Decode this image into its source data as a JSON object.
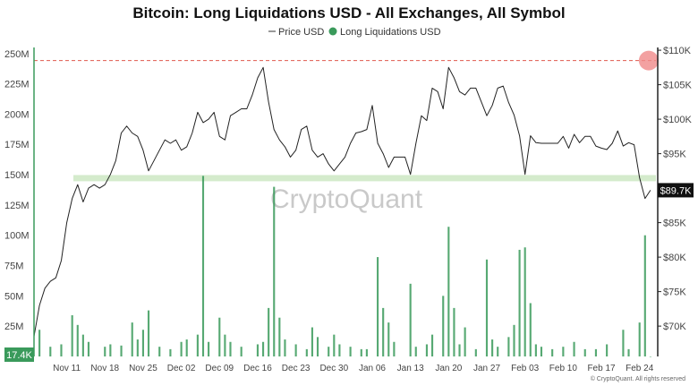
{
  "chart_data": {
    "type": "bar+line",
    "title": "Bitcoin: Long Liquidations USD - All Exchanges, All Symbol",
    "legend": [
      {
        "name": "Price USD",
        "marker": "line",
        "color": "#555555"
      },
      {
        "name": "Long Liquidations USD",
        "marker": "dot",
        "color": "#3a9a5b"
      }
    ],
    "left_axis": {
      "ticks": [
        {
          "value": 25000000,
          "label": "25M"
        },
        {
          "value": 50000000,
          "label": "50M"
        },
        {
          "value": 75000000,
          "label": "75M"
        },
        {
          "value": 100000000,
          "label": "100M"
        },
        {
          "value": 125000000,
          "label": "125M"
        },
        {
          "value": 150000000,
          "label": "150M"
        },
        {
          "value": 175000000,
          "label": "175M"
        },
        {
          "value": 200000000,
          "label": "200M"
        },
        {
          "value": 225000000,
          "label": "225M"
        },
        {
          "value": 250000000,
          "label": "250M"
        }
      ],
      "range": [
        0,
        255000000
      ],
      "current_value_label": "17.4K"
    },
    "right_axis": {
      "ticks": [
        {
          "value": 70000,
          "label": "$70K"
        },
        {
          "value": 75000,
          "label": "$75K"
        },
        {
          "value": 80000,
          "label": "$80K"
        },
        {
          "value": 85000,
          "label": "$85K"
        },
        {
          "value": 95000,
          "label": "$95K"
        },
        {
          "value": 100000,
          "label": "$100K"
        },
        {
          "value": 105000,
          "label": "$105K"
        },
        {
          "value": 110000,
          "label": "$110K"
        }
      ],
      "range": [
        65600,
        110400
      ],
      "current_value_label": "$89.7K"
    },
    "x_axis": {
      "start": "2024-11-05",
      "end": "2025-02-27",
      "ticks": [
        {
          "date": "2024-11-11",
          "label": "Nov 11"
        },
        {
          "date": "2024-11-18",
          "label": "Nov 18"
        },
        {
          "date": "2024-11-25",
          "label": "Nov 25"
        },
        {
          "date": "2024-12-02",
          "label": "Dec 02"
        },
        {
          "date": "2024-12-09",
          "label": "Dec 09"
        },
        {
          "date": "2024-12-16",
          "label": "Dec 16"
        },
        {
          "date": "2024-12-23",
          "label": "Dec 23"
        },
        {
          "date": "2024-12-30",
          "label": "Dec 30"
        },
        {
          "date": "2025-01-06",
          "label": "Jan 06"
        },
        {
          "date": "2025-01-13",
          "label": "Jan 13"
        },
        {
          "date": "2025-01-20",
          "label": "Jan 20"
        },
        {
          "date": "2025-01-27",
          "label": "Jan 27"
        },
        {
          "date": "2025-02-03",
          "label": "Feb 03"
        },
        {
          "date": "2025-02-10",
          "label": "Feb 10"
        },
        {
          "date": "2025-02-17",
          "label": "Feb 17"
        },
        {
          "date": "2025-02-24",
          "label": "Feb 24"
        }
      ]
    },
    "price_usd": [
      [
        "2024-11-05",
        68500
      ],
      [
        "2024-11-06",
        73000
      ],
      [
        "2024-11-07",
        75500
      ],
      [
        "2024-11-08",
        76500
      ],
      [
        "2024-11-09",
        77000
      ],
      [
        "2024-11-10",
        79500
      ],
      [
        "2024-11-11",
        85000
      ],
      [
        "2024-11-12",
        88500
      ],
      [
        "2024-11-13",
        90500
      ],
      [
        "2024-11-14",
        88000
      ],
      [
        "2024-11-15",
        90000
      ],
      [
        "2024-11-16",
        90500
      ],
      [
        "2024-11-17",
        90000
      ],
      [
        "2024-11-18",
        90500
      ],
      [
        "2024-11-19",
        92000
      ],
      [
        "2024-11-20",
        94000
      ],
      [
        "2024-11-21",
        98000
      ],
      [
        "2024-11-22",
        99000
      ],
      [
        "2024-11-23",
        98000
      ],
      [
        "2024-11-24",
        97500
      ],
      [
        "2024-11-25",
        95500
      ],
      [
        "2024-11-26",
        92500
      ],
      [
        "2024-11-27",
        94000
      ],
      [
        "2024-11-28",
        95500
      ],
      [
        "2024-11-29",
        97000
      ],
      [
        "2024-11-30",
        96500
      ],
      [
        "2024-12-01",
        97000
      ],
      [
        "2024-12-02",
        95500
      ],
      [
        "2024-12-03",
        96000
      ],
      [
        "2024-12-04",
        98000
      ],
      [
        "2024-12-05",
        101000
      ],
      [
        "2024-12-06",
        99500
      ],
      [
        "2024-12-07",
        100000
      ],
      [
        "2024-12-08",
        101000
      ],
      [
        "2024-12-09",
        97500
      ],
      [
        "2024-12-10",
        97000
      ],
      [
        "2024-12-11",
        100500
      ],
      [
        "2024-12-12",
        101000
      ],
      [
        "2024-12-13",
        101500
      ],
      [
        "2024-12-14",
        101500
      ],
      [
        "2024-12-15",
        103500
      ],
      [
        "2024-12-16",
        106000
      ],
      [
        "2024-12-17",
        107500
      ],
      [
        "2024-12-18",
        102500
      ],
      [
        "2024-12-19",
        98500
      ],
      [
        "2024-12-20",
        97000
      ],
      [
        "2024-12-21",
        96000
      ],
      [
        "2024-12-22",
        94500
      ],
      [
        "2024-12-23",
        95500
      ],
      [
        "2024-12-24",
        98500
      ],
      [
        "2024-12-25",
        99000
      ],
      [
        "2024-12-26",
        95500
      ],
      [
        "2024-12-27",
        94500
      ],
      [
        "2024-12-28",
        95000
      ],
      [
        "2024-12-29",
        93500
      ],
      [
        "2024-12-30",
        92500
      ],
      [
        "2024-12-31",
        93500
      ],
      [
        "2025-01-01",
        94500
      ],
      [
        "2025-01-02",
        96500
      ],
      [
        "2025-01-03",
        98000
      ],
      [
        "2025-01-04",
        98200
      ],
      [
        "2025-01-05",
        98500
      ],
      [
        "2025-01-06",
        102000
      ],
      [
        "2025-01-07",
        96500
      ],
      [
        "2025-01-08",
        95000
      ],
      [
        "2025-01-09",
        93000
      ],
      [
        "2025-01-10",
        94500
      ],
      [
        "2025-01-11",
        94500
      ],
      [
        "2025-01-12",
        94500
      ],
      [
        "2025-01-13",
        92000
      ],
      [
        "2025-01-14",
        96500
      ],
      [
        "2025-01-15",
        100500
      ],
      [
        "2025-01-16",
        99800
      ],
      [
        "2025-01-17",
        104500
      ],
      [
        "2025-01-18",
        104000
      ],
      [
        "2025-01-19",
        101500
      ],
      [
        "2025-01-20",
        107500
      ],
      [
        "2025-01-21",
        106000
      ],
      [
        "2025-01-22",
        104000
      ],
      [
        "2025-01-23",
        103500
      ],
      [
        "2025-01-24",
        104500
      ],
      [
        "2025-01-25",
        104500
      ],
      [
        "2025-01-26",
        102500
      ],
      [
        "2025-01-27",
        100500
      ],
      [
        "2025-01-28",
        102000
      ],
      [
        "2025-01-29",
        104500
      ],
      [
        "2025-01-30",
        104800
      ],
      [
        "2025-01-31",
        102400
      ],
      [
        "2025-02-01",
        100600
      ],
      [
        "2025-02-02",
        97600
      ],
      [
        "2025-02-03",
        92000
      ],
      [
        "2025-02-04",
        97600
      ],
      [
        "2025-02-05",
        96600
      ],
      [
        "2025-02-06",
        96500
      ],
      [
        "2025-02-07",
        96500
      ],
      [
        "2025-02-08",
        96500
      ],
      [
        "2025-02-09",
        96500
      ],
      [
        "2025-02-10",
        97500
      ],
      [
        "2025-02-11",
        95800
      ],
      [
        "2025-02-12",
        97800
      ],
      [
        "2025-02-13",
        96600
      ],
      [
        "2025-02-14",
        97500
      ],
      [
        "2025-02-15",
        97500
      ],
      [
        "2025-02-16",
        96100
      ],
      [
        "2025-02-17",
        95800
      ],
      [
        "2025-02-18",
        95600
      ],
      [
        "2025-02-19",
        96500
      ],
      [
        "2025-02-20",
        98300
      ],
      [
        "2025-02-21",
        96100
      ],
      [
        "2025-02-22",
        96600
      ],
      [
        "2025-02-23",
        96300
      ],
      [
        "2025-02-24",
        91500
      ],
      [
        "2025-02-25",
        88500
      ],
      [
        "2025-02-26",
        89700
      ]
    ],
    "long_liquidations_usd": [
      [
        "2024-11-06",
        22000000
      ],
      [
        "2024-11-08",
        8000000
      ],
      [
        "2024-11-10",
        10000000
      ],
      [
        "2024-11-12",
        34000000
      ],
      [
        "2024-11-13",
        26000000
      ],
      [
        "2024-11-14",
        18000000
      ],
      [
        "2024-11-15",
        12000000
      ],
      [
        "2024-11-18",
        8000000
      ],
      [
        "2024-11-19",
        10000000
      ],
      [
        "2024-11-21",
        9000000
      ],
      [
        "2024-11-23",
        28000000
      ],
      [
        "2024-11-24",
        14000000
      ],
      [
        "2024-11-25",
        22000000
      ],
      [
        "2024-11-26",
        38000000
      ],
      [
        "2024-11-28",
        8000000
      ],
      [
        "2024-11-30",
        6000000
      ],
      [
        "2024-12-02",
        12000000
      ],
      [
        "2024-12-03",
        14000000
      ],
      [
        "2024-12-05",
        18000000
      ],
      [
        "2024-12-06",
        149000000
      ],
      [
        "2024-12-07",
        12000000
      ],
      [
        "2024-12-09",
        32000000
      ],
      [
        "2024-12-10",
        18000000
      ],
      [
        "2024-12-11",
        12000000
      ],
      [
        "2024-12-13",
        8000000
      ],
      [
        "2024-12-16",
        10000000
      ],
      [
        "2024-12-17",
        12000000
      ],
      [
        "2024-12-18",
        40000000
      ],
      [
        "2024-12-19",
        140000000
      ],
      [
        "2024-12-20",
        32000000
      ],
      [
        "2024-12-21",
        14000000
      ],
      [
        "2024-12-23",
        10000000
      ],
      [
        "2024-12-25",
        6000000
      ],
      [
        "2024-12-26",
        24000000
      ],
      [
        "2024-12-27",
        16000000
      ],
      [
        "2024-12-29",
        8000000
      ],
      [
        "2024-12-30",
        18000000
      ],
      [
        "2024-12-31",
        10000000
      ],
      [
        "2025-01-02",
        8000000
      ],
      [
        "2025-01-04",
        6000000
      ],
      [
        "2025-01-05",
        6000000
      ],
      [
        "2025-01-07",
        82000000
      ],
      [
        "2025-01-08",
        40000000
      ],
      [
        "2025-01-09",
        28000000
      ],
      [
        "2025-01-10",
        12000000
      ],
      [
        "2025-01-13",
        60000000
      ],
      [
        "2025-01-14",
        8000000
      ],
      [
        "2025-01-16",
        10000000
      ],
      [
        "2025-01-17",
        18000000
      ],
      [
        "2025-01-19",
        50000000
      ],
      [
        "2025-01-20",
        107000000
      ],
      [
        "2025-01-21",
        40000000
      ],
      [
        "2025-01-22",
        10000000
      ],
      [
        "2025-01-23",
        24000000
      ],
      [
        "2025-01-25",
        6000000
      ],
      [
        "2025-01-27",
        80000000
      ],
      [
        "2025-01-28",
        14000000
      ],
      [
        "2025-01-29",
        8000000
      ],
      [
        "2025-01-31",
        16000000
      ],
      [
        "2025-02-01",
        26000000
      ],
      [
        "2025-02-02",
        88000000
      ],
      [
        "2025-02-03",
        90000000
      ],
      [
        "2025-02-04",
        44000000
      ],
      [
        "2025-02-05",
        10000000
      ],
      [
        "2025-02-06",
        8000000
      ],
      [
        "2025-02-08",
        6000000
      ],
      [
        "2025-02-10",
        8000000
      ],
      [
        "2025-02-12",
        12000000
      ],
      [
        "2025-02-14",
        6000000
      ],
      [
        "2025-02-16",
        6000000
      ],
      [
        "2025-02-18",
        10000000
      ],
      [
        "2025-02-21",
        22000000
      ],
      [
        "2025-02-22",
        6000000
      ],
      [
        "2025-02-24",
        28000000
      ],
      [
        "2025-02-25",
        100000000
      ],
      [
        "2025-02-26",
        17400
      ]
    ],
    "resistance_line": {
      "value": 108500,
      "color": "#e05a4f",
      "style": "dashed"
    },
    "support_zone": {
      "from": 91000,
      "to": 91900,
      "color": "#cde8c3"
    },
    "highlight_circle": {
      "date": "2025-02-26",
      "value": 108500,
      "color": "#f08a8a"
    },
    "watermark": "CryptoQuant",
    "copyright": "© CryptoQuant. All rights reserved"
  }
}
